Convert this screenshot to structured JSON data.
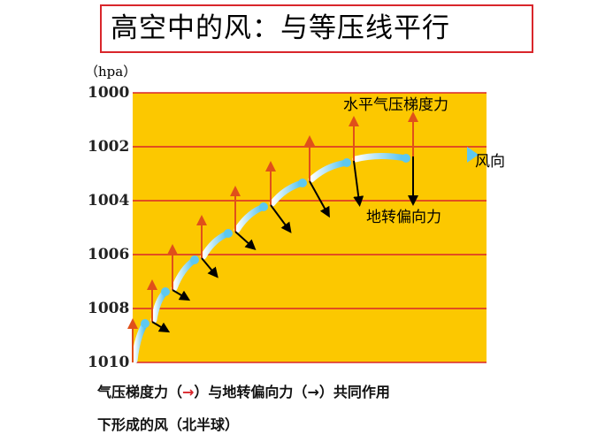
{
  "title": "高空中的风：与等压线平行",
  "diagram": {
    "unit_label": "（hpa）",
    "isobars": [
      "1000",
      "1002",
      "1004",
      "1006",
      "1008",
      "1010"
    ],
    "labels": {
      "pressure_gradient_force": "水平气压梯度力",
      "wind_direction": "风向",
      "coriolis_force": "地转偏向力"
    },
    "colors": {
      "background": "#fcc800",
      "isobar": "#d9262b",
      "pressure_gradient_arrow": "#e0501a",
      "coriolis_arrow": "#000000",
      "wind_arrow": "#5ec8f0"
    }
  },
  "caption": {
    "line1_a": "气压梯度力（",
    "line1_arrow_red": "→",
    "line1_b": "）与地转偏向力（",
    "line1_arrow_black": "→",
    "line1_c": "）共同作用",
    "line2": "下形成的风（北半球）"
  }
}
